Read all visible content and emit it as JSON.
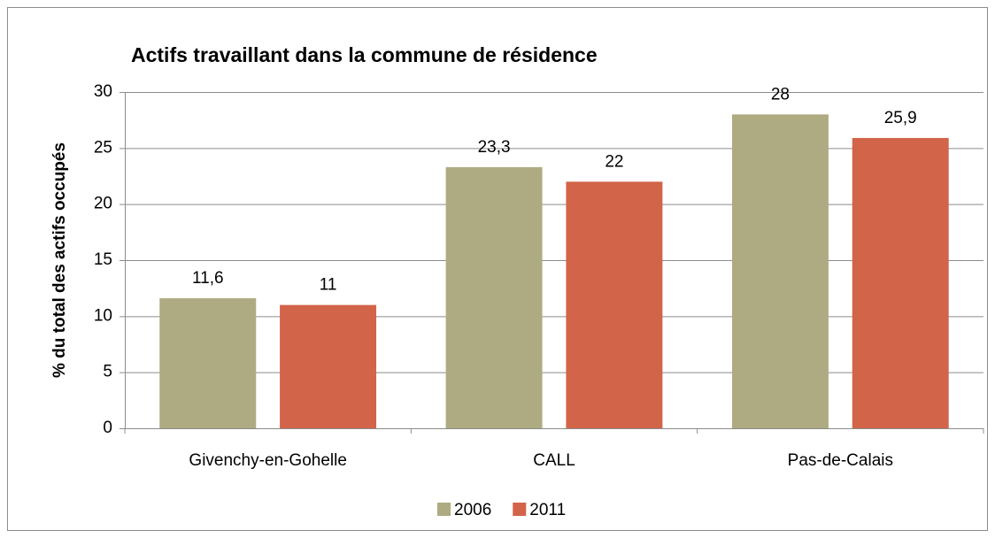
{
  "chart_data": {
    "type": "bar",
    "title": "Actifs travaillant dans la commune de résidence",
    "y_label": "% du total des actifs occupés",
    "categories": [
      "Givenchy-en-Gohelle",
      "CALL",
      "Pas-de-Calais"
    ],
    "series": [
      {
        "name": "2006",
        "color": "#aeab82",
        "values": [
          11.6,
          23.3,
          28
        ],
        "value_labels": [
          "11,6",
          "23,3",
          "28"
        ]
      },
      {
        "name": "2011",
        "color": "#d2644a",
        "values": [
          11,
          22,
          25.9
        ],
        "value_labels": [
          "11",
          "22",
          "25,9"
        ]
      }
    ],
    "ylim": [
      0,
      30
    ],
    "yticks": [
      0,
      5,
      10,
      15,
      20,
      25,
      30
    ],
    "grid": true,
    "legend": "bottom"
  }
}
